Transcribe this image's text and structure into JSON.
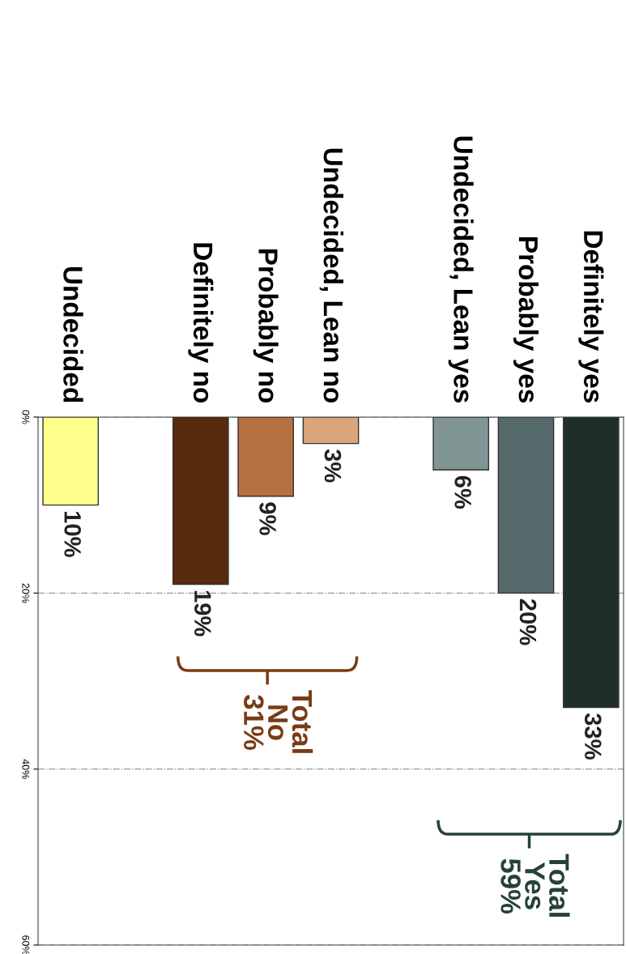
{
  "chart_data": {
    "type": "bar",
    "categories": [
      "Undecided",
      null,
      "Definitely no",
      "Probably no",
      "Undecided, Lean no",
      null,
      "Undecided, Lean yes",
      "Probably yes",
      "Definitely yes"
    ],
    "values": [
      10,
      null,
      19,
      9,
      3,
      null,
      6,
      20,
      33
    ],
    "colors": [
      "#ffff8c",
      "#ffffff",
      "#5a2a0e",
      "#b5713f",
      "#dba57c",
      "#ffffff",
      "#809594",
      "#56696a",
      "#1e2e2b"
    ],
    "value_labels": [
      "10%",
      null,
      "19%",
      "9%",
      "3%",
      null,
      "6%",
      "20%",
      "33%"
    ],
    "ylim": [
      60,
      0
    ],
    "yticks": [
      {
        "value": 0,
        "label": "0%"
      },
      {
        "value": 20,
        "label": "20%"
      },
      {
        "value": 40,
        "label": "40%"
      },
      {
        "value": 60,
        "label": "60%"
      }
    ],
    "grid": "y",
    "annotations": [
      "Total\nNo\n31%",
      "Total\nYes\n59%"
    ]
  }
}
